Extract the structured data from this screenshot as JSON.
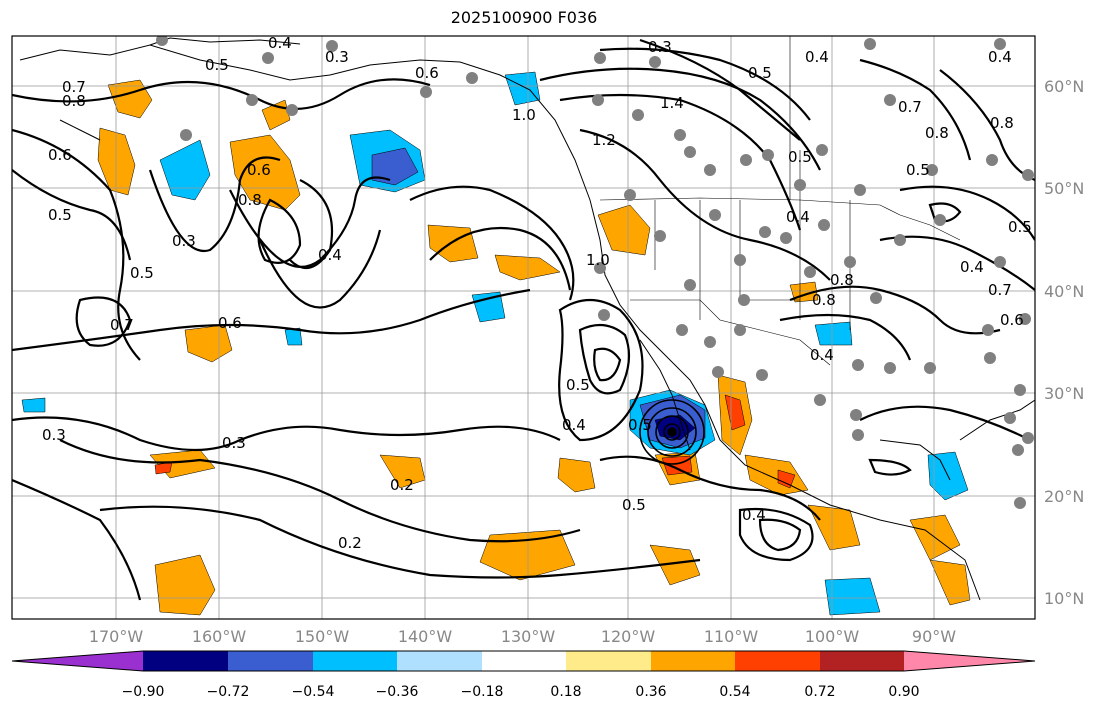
{
  "title": "2025100900 F036",
  "x_ticks": [
    "170°W",
    "160°W",
    "150°W",
    "140°W",
    "130°W",
    "120°W",
    "110°W",
    "100°W",
    "90°W"
  ],
  "y_ticks": [
    "60°N",
    "50°N",
    "40°N",
    "30°N",
    "20°N",
    "10°N"
  ],
  "colorbar": {
    "colors": [
      "#9b30d0",
      "#000080",
      "#3a5ecf",
      "#00bfff",
      "#b0e0ff",
      "#ffffff",
      "#ffeb8a",
      "#ffa500",
      "#ff4000",
      "#b22222",
      "#ff88aa"
    ],
    "labels": [
      "−0.90",
      "−0.72",
      "−0.54",
      "−0.36",
      "−0.18",
      "0.18",
      "0.36",
      "0.54",
      "0.72",
      "0.90"
    ]
  },
  "contour_labels": [
    "0.7",
    "0.8",
    "0.5",
    "0.3",
    "0.4",
    "0.6",
    "1.0",
    "1.2",
    "1.4",
    "0.3",
    "0.5",
    "0.4",
    "0.6",
    "0.5",
    "0.6",
    "0.8",
    "0.3",
    "0.4",
    "0.5",
    "0.7",
    "0.6",
    "1.0",
    "0.5",
    "0.3",
    "0.4",
    "0.2",
    "0.2",
    "0.3",
    "0.5",
    "0.4",
    "0.5",
    "0.5",
    "0.4",
    "0.8",
    "0.7",
    "0.8",
    "0.5",
    "0.4",
    "0.7",
    "0.8",
    "0.6",
    "0.5",
    "0.4",
    "0.8",
    "0.4"
  ],
  "colors": {
    "contour": "#000000",
    "grid": "#999999",
    "stations": "#808080",
    "axis_text": "#888888"
  }
}
